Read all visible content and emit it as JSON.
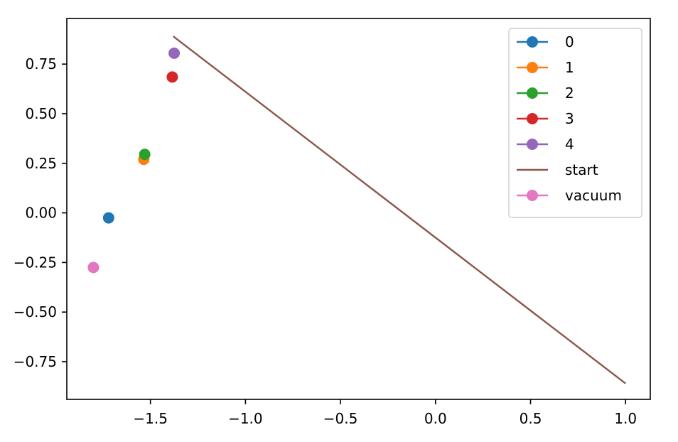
{
  "chart_data": {
    "type": "scatter",
    "title": "",
    "xlabel": "",
    "ylabel": "",
    "xlim": [
      -1.94,
      1.13
    ],
    "ylim": [
      -0.94,
      0.98
    ],
    "xticks": [
      -1.5,
      -1.0,
      -0.5,
      0.0,
      0.5,
      1.0
    ],
    "xtick_labels": [
      "−1.5",
      "−1.0",
      "−0.5",
      "0.0",
      "0.5",
      "1.0"
    ],
    "yticks": [
      -0.75,
      -0.5,
      -0.25,
      0.0,
      0.25,
      0.5,
      0.75
    ],
    "ytick_labels": [
      "−0.75",
      "−0.50",
      "−0.25",
      "0.00",
      "0.25",
      "0.50",
      "0.75"
    ],
    "grid": false,
    "legend_position": "top-right",
    "series": [
      {
        "name": "0",
        "kind": "point",
        "color": "#1f77b4",
        "points": [
          {
            "x": -1.72,
            "y": -0.025
          }
        ]
      },
      {
        "name": "1",
        "kind": "point",
        "color": "#ff7f0e",
        "points": [
          {
            "x": -1.535,
            "y": 0.27
          }
        ]
      },
      {
        "name": "2",
        "kind": "point",
        "color": "#2ca02c",
        "points": [
          {
            "x": -1.53,
            "y": 0.295
          }
        ]
      },
      {
        "name": "3",
        "kind": "point",
        "color": "#d62728",
        "points": [
          {
            "x": -1.385,
            "y": 0.685
          }
        ]
      },
      {
        "name": "4",
        "kind": "point",
        "color": "#9467bd",
        "points": [
          {
            "x": -1.375,
            "y": 0.805
          }
        ]
      },
      {
        "name": "start",
        "kind": "line",
        "color": "#8c564b",
        "points": [
          {
            "x": -1.38,
            "y": 0.89
          },
          {
            "x": 1.0,
            "y": -0.86
          }
        ]
      },
      {
        "name": "vacuum",
        "kind": "point",
        "color": "#e377c2",
        "points": [
          {
            "x": -1.8,
            "y": -0.275
          }
        ]
      }
    ]
  }
}
